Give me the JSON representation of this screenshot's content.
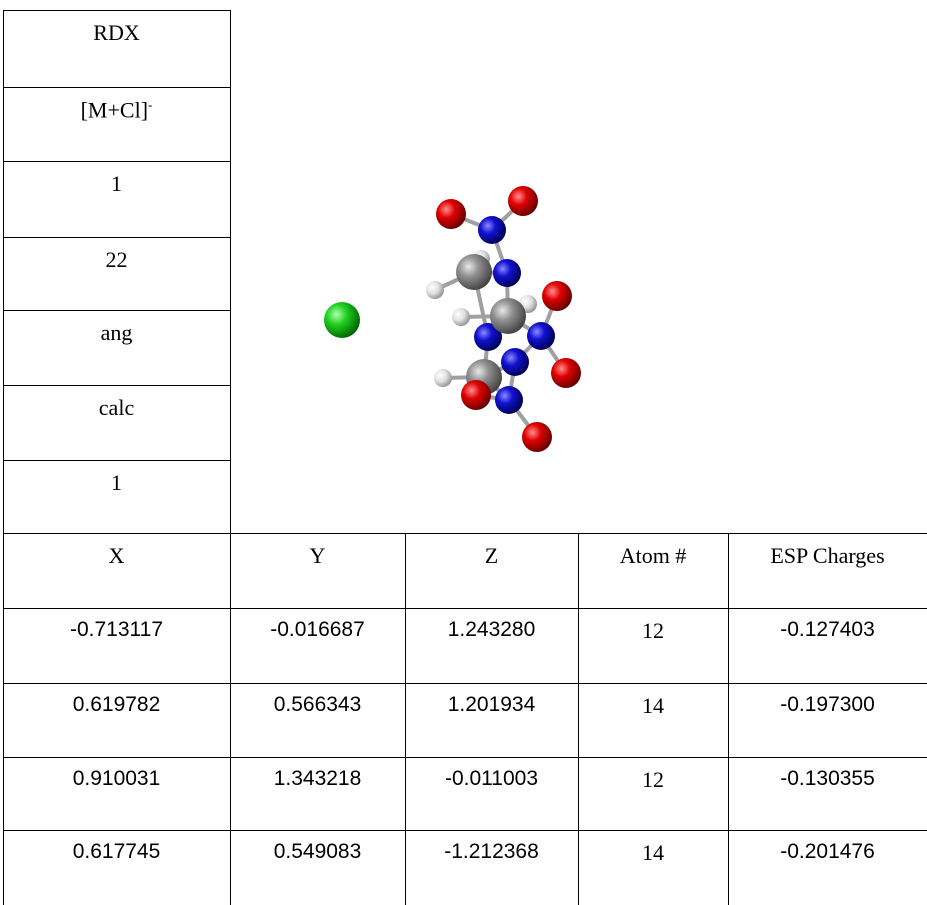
{
  "info": [
    {
      "text": "RDX"
    },
    {
      "text": "[M+Cl]",
      "superscript": "-"
    },
    {
      "text": "1"
    },
    {
      "text": "22"
    },
    {
      "text": "ang"
    },
    {
      "text": "calc"
    },
    {
      "text": "1"
    }
  ],
  "table": {
    "header": [
      "X",
      "Y",
      "Z",
      "Atom #",
      "ESP Charges"
    ],
    "rows": [
      [
        "-0.713117",
        "-0.016687",
        "1.243280",
        "12",
        "-0.127403"
      ],
      [
        "0.619782",
        "0.566343",
        "1.201934",
        "14",
        "-0.197300"
      ],
      [
        "0.910031",
        "1.343218",
        "-0.011003",
        "12",
        "-0.130355"
      ],
      [
        "0.617745",
        "0.549083",
        "-1.212368",
        "14",
        "-0.201476"
      ]
    ]
  }
}
